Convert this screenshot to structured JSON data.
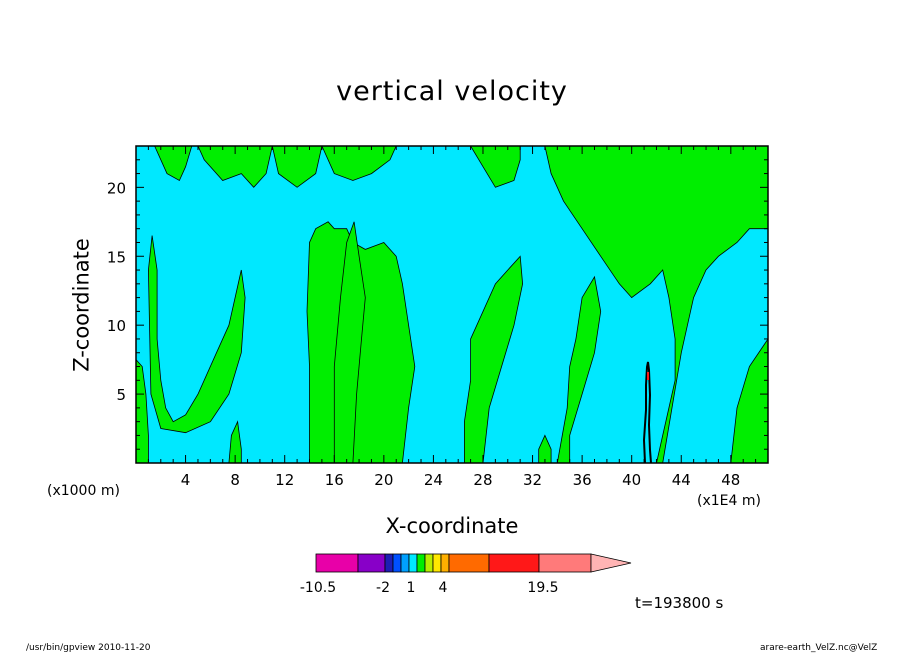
{
  "chart_data": {
    "type": "heatmap",
    "title": "vertical velocity",
    "xlabel": "X-coordinate",
    "ylabel": "Z-coordinate",
    "x_unit_label": "(x1000 m)",
    "x_scale_label": "(x1E4 m)",
    "xlim": [
      0,
      51
    ],
    "ylim": [
      0,
      23
    ],
    "xticks": [
      4,
      8,
      12,
      16,
      20,
      24,
      28,
      32,
      36,
      40,
      44,
      48
    ],
    "yticks": [
      5,
      10,
      15,
      20
    ],
    "time_label": "t=193800 s",
    "background_color": "#00e8ff",
    "upward_region_color": "#00ee00",
    "upward_regions": [
      [
        [
          0,
          23
        ],
        [
          1.5,
          23
        ],
        [
          2.5,
          21
        ],
        [
          3.5,
          20.5
        ],
        [
          4,
          21.5
        ],
        [
          4.5,
          23
        ]
      ],
      [
        [
          5,
          23
        ],
        [
          5.5,
          22
        ],
        [
          7,
          20.5
        ],
        [
          8.5,
          21
        ],
        [
          9.5,
          20
        ],
        [
          10.5,
          21
        ],
        [
          11,
          23
        ]
      ],
      [
        [
          11,
          23
        ],
        [
          11.5,
          21
        ],
        [
          13,
          20
        ],
        [
          14.5,
          21
        ],
        [
          15,
          23
        ]
      ],
      [
        [
          15,
          23
        ],
        [
          16,
          21
        ],
        [
          17.5,
          20.5
        ],
        [
          19,
          21
        ],
        [
          20.5,
          22
        ],
        [
          21,
          23
        ]
      ],
      [
        [
          27,
          23
        ],
        [
          28,
          21.5
        ],
        [
          29,
          20
        ],
        [
          30.5,
          20.5
        ],
        [
          31,
          22
        ],
        [
          31,
          23
        ]
      ],
      [
        [
          33,
          23
        ],
        [
          33.5,
          21
        ],
        [
          34.5,
          19
        ],
        [
          36,
          17
        ],
        [
          37.5,
          15
        ],
        [
          39,
          13
        ],
        [
          40,
          12
        ],
        [
          41.5,
          13
        ],
        [
          42.5,
          14
        ],
        [
          43,
          12
        ],
        [
          43.5,
          9
        ],
        [
          43.5,
          6
        ],
        [
          43,
          4
        ],
        [
          42.5,
          2
        ],
        [
          42,
          0
        ],
        [
          42.5,
          0
        ],
        [
          44,
          8
        ],
        [
          45,
          12
        ],
        [
          46,
          14
        ],
        [
          47,
          15
        ],
        [
          48.5,
          16
        ],
        [
          49.5,
          17
        ],
        [
          51,
          17
        ],
        [
          51,
          23
        ]
      ],
      [
        [
          14,
          0
        ],
        [
          14,
          7
        ],
        [
          13.8,
          11
        ],
        [
          14,
          16
        ],
        [
          14.5,
          17
        ],
        [
          15.5,
          17.5
        ],
        [
          16,
          17
        ],
        [
          17,
          17
        ],
        [
          17.5,
          16
        ],
        [
          18.5,
          15.5
        ],
        [
          20,
          16
        ],
        [
          21,
          15
        ],
        [
          21.5,
          13
        ],
        [
          22,
          10
        ],
        [
          22.5,
          7
        ],
        [
          22,
          4
        ],
        [
          21.5,
          0
        ]
      ],
      [
        [
          17.5,
          0
        ],
        [
          17.8,
          5
        ],
        [
          18.2,
          9
        ],
        [
          18.5,
          12
        ],
        [
          18,
          15
        ],
        [
          17.6,
          17.5
        ],
        [
          17,
          16
        ],
        [
          16.5,
          12
        ],
        [
          16,
          7
        ],
        [
          16,
          0
        ]
      ],
      [
        [
          0,
          0
        ],
        [
          0,
          7.5
        ],
        [
          0.5,
          7
        ],
        [
          0.8,
          5
        ],
        [
          1,
          2
        ],
        [
          1,
          0
        ]
      ],
      [
        [
          1,
          14
        ],
        [
          1.3,
          16.5
        ],
        [
          1.7,
          14
        ],
        [
          1.7,
          9
        ],
        [
          2,
          6
        ],
        [
          2.4,
          4
        ],
        [
          3,
          3
        ],
        [
          4,
          3.5
        ],
        [
          5,
          5
        ],
        [
          6.5,
          8
        ],
        [
          7.5,
          10
        ],
        [
          8,
          12
        ],
        [
          8.5,
          14
        ],
        [
          8.8,
          12
        ],
        [
          8.5,
          8
        ],
        [
          7.5,
          5
        ],
        [
          6,
          3
        ],
        [
          4,
          2.2
        ],
        [
          2,
          2.5
        ],
        [
          1.2,
          5
        ]
      ],
      [
        [
          26.5,
          0
        ],
        [
          26.5,
          3
        ],
        [
          27,
          6
        ],
        [
          27,
          9
        ],
        [
          28,
          11
        ],
        [
          29,
          13
        ],
        [
          30,
          14
        ],
        [
          31,
          15
        ],
        [
          31.2,
          13
        ],
        [
          30.5,
          10
        ],
        [
          29.5,
          7
        ],
        [
          28.5,
          4
        ],
        [
          28,
          0
        ]
      ],
      [
        [
          35,
          0
        ],
        [
          35,
          2
        ],
        [
          36,
          5
        ],
        [
          37,
          8
        ],
        [
          37.5,
          11
        ],
        [
          37,
          13.5
        ],
        [
          36,
          12
        ],
        [
          35.5,
          9
        ],
        [
          35,
          7
        ],
        [
          34.8,
          4
        ],
        [
          34,
          0
        ]
      ],
      [
        [
          48,
          0
        ],
        [
          48.5,
          4
        ],
        [
          49.5,
          7
        ],
        [
          51,
          9
        ],
        [
          51,
          0
        ]
      ],
      [
        [
          7.5,
          0
        ],
        [
          7.7,
          2
        ],
        [
          8.2,
          3
        ],
        [
          8.5,
          1
        ],
        [
          8.5,
          0
        ]
      ],
      [
        [
          32.5,
          0
        ],
        [
          32.5,
          1
        ],
        [
          33,
          2
        ],
        [
          33.5,
          1
        ],
        [
          33.5,
          0
        ]
      ]
    ],
    "colorbar": {
      "tick_labels": [
        "-10.5",
        "-2",
        "1",
        "4",
        "19.5"
      ],
      "colors": [
        "#e800a8",
        "#8800c8",
        "#1e1eb4",
        "#0050ff",
        "#00a0ff",
        "#00e8ff",
        "#00ee00",
        "#b8ee00",
        "#ffe800",
        "#ffb000",
        "#ff6a00",
        "#ff1818",
        "#ff7a7a",
        "#ffb4b4"
      ]
    }
  },
  "footer": {
    "left": "/usr/bin/gpview   2010-11-20",
    "right": "arare-earth_VelZ.nc@VelZ"
  }
}
